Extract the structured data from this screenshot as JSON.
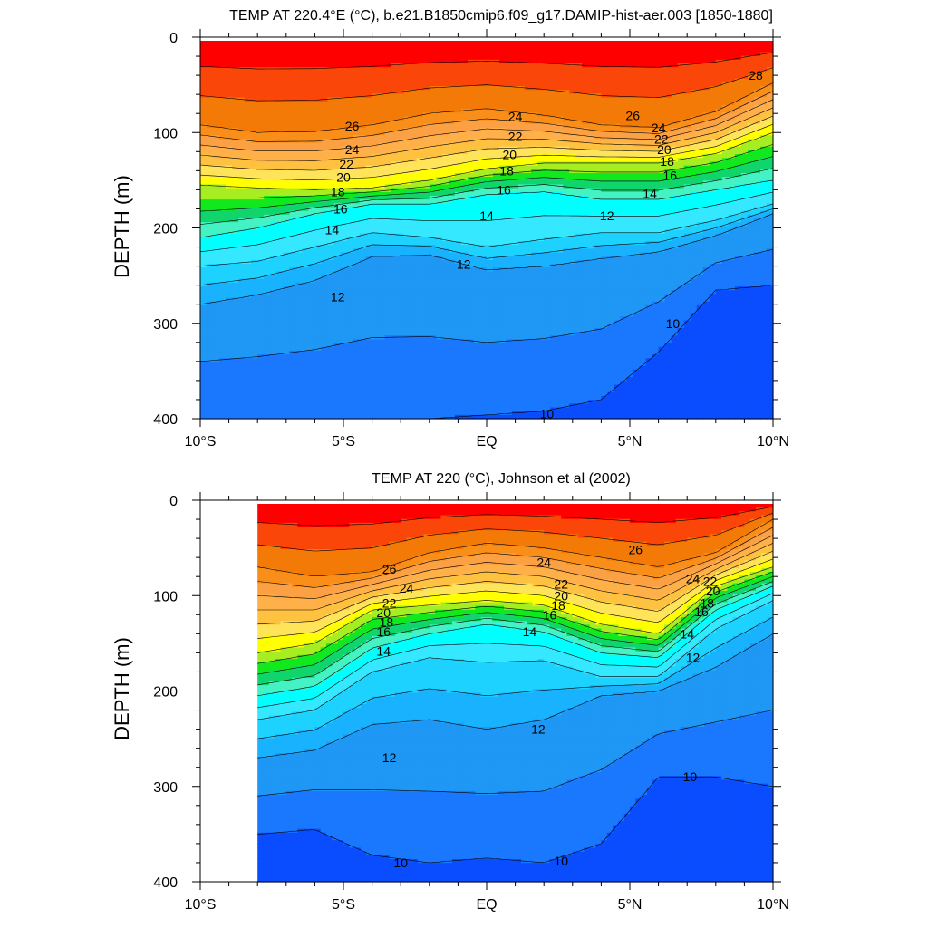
{
  "chart_data": [
    {
      "type": "contour",
      "title": "TEMP AT 220.4°E (°C), b.e21.B1850cmip6.f09_g17.DAMIP-hist-aer.003 [1850-1880]",
      "ylabel": "DEPTH (m)",
      "xlabel": "",
      "x_ticks": [
        "10°S",
        "5°S",
        "EQ",
        "5°N",
        "10°N"
      ],
      "y_ticks": [
        "0",
        "100",
        "200",
        "300",
        "400"
      ],
      "xlim": [
        -10,
        10
      ],
      "ylim": [
        400,
        0
      ],
      "data_xlim": [
        -10,
        10
      ],
      "contour_levels": [
        10,
        11,
        12,
        13,
        14,
        15,
        16,
        17,
        18,
        19,
        20,
        21,
        22,
        23,
        24,
        25,
        26,
        27,
        28
      ],
      "isotherm_depths": {
        "x": [
          -10,
          -8,
          -6,
          -4,
          -2,
          0,
          2,
          4,
          6,
          8,
          10
        ],
        "t26": [
          92,
          100,
          99,
          92,
          80,
          75,
          82,
          92,
          95,
          78,
          48
        ],
        "t20": [
          155,
          158,
          160,
          158,
          150,
          138,
          132,
          132,
          132,
          122,
          100
        ],
        "t16": [
          210,
          200,
          185,
          175,
          175,
          165,
          162,
          170,
          170,
          160,
          150
        ],
        "t14": [
          240,
          235,
          220,
          205,
          210,
          220,
          212,
          205,
          205,
          192,
          175
        ],
        "t12": [
          280,
          270,
          255,
          230,
          228,
          244,
          240,
          232,
          225,
          208,
          185
        ],
        "t10": [
          400,
          400,
          400,
          400,
          400,
          396,
          392,
          380,
          330,
          265,
          260
        ]
      },
      "contour_labels": [
        {
          "x": -4.7,
          "y": 93,
          "text": "26"
        },
        {
          "x": 1,
          "y": 83,
          "text": "24"
        },
        {
          "x": 1,
          "y": 104,
          "text": "22"
        },
        {
          "x": 0.8,
          "y": 123,
          "text": "20"
        },
        {
          "x": 0.7,
          "y": 140,
          "text": "18"
        },
        {
          "x": 0.6,
          "y": 160,
          "text": "16"
        },
        {
          "x": 0,
          "y": 187,
          "text": "14"
        },
        {
          "x": 4.2,
          "y": 187,
          "text": "12"
        },
        {
          "x": -4.7,
          "y": 118,
          "text": "24"
        },
        {
          "x": -4.9,
          "y": 133,
          "text": "22"
        },
        {
          "x": -5.0,
          "y": 147,
          "text": "20"
        },
        {
          "x": -5.2,
          "y": 162,
          "text": "18"
        },
        {
          "x": -5.1,
          "y": 180,
          "text": "16"
        },
        {
          "x": -5.4,
          "y": 202,
          "text": "14"
        },
        {
          "x": -5.2,
          "y": 272,
          "text": "12"
        },
        {
          "x": -0.8,
          "y": 238,
          "text": "12"
        },
        {
          "x": 6.0,
          "y": 95,
          "text": "24"
        },
        {
          "x": 6.1,
          "y": 107,
          "text": "22"
        },
        {
          "x": 6.2,
          "y": 118,
          "text": "20"
        },
        {
          "x": 6.3,
          "y": 130,
          "text": "18"
        },
        {
          "x": 6.4,
          "y": 145,
          "text": "16"
        },
        {
          "x": 5.7,
          "y": 164,
          "text": "14"
        },
        {
          "x": 9.4,
          "y": 40,
          "text": "28"
        },
        {
          "x": 5.1,
          "y": 82,
          "text": "26"
        },
        {
          "x": 6.5,
          "y": 300,
          "text": "10"
        },
        {
          "x": 2.1,
          "y": 395,
          "text": "10"
        }
      ]
    },
    {
      "type": "contour",
      "title": "TEMP AT 220 (°C), Johnson et al (2002)",
      "ylabel": "DEPTH (m)",
      "xlabel": "",
      "x_ticks": [
        "10°S",
        "5°S",
        "EQ",
        "5°N",
        "10°N"
      ],
      "y_ticks": [
        "0",
        "100",
        "200",
        "300",
        "400"
      ],
      "xlim": [
        -10,
        10
      ],
      "ylim": [
        400,
        0
      ],
      "data_xlim": [
        -8,
        10
      ],
      "contour_levels": [
        10,
        11,
        12,
        13,
        14,
        15,
        16,
        17,
        18,
        19,
        20,
        21,
        22,
        23,
        24,
        25,
        26,
        27,
        28
      ],
      "isotherm_depths": {
        "x": [
          -8,
          -6,
          -4,
          -2,
          0,
          2,
          4,
          6,
          8,
          10
        ],
        "t26": [
          70,
          80,
          75,
          55,
          45,
          50,
          60,
          70,
          55,
          20
        ],
        "t20": [
          160,
          150,
          115,
          110,
          105,
          110,
          130,
          140,
          90,
          70
        ],
        "t16": [
          205,
          195,
          155,
          140,
          130,
          138,
          160,
          165,
          115,
          90
        ],
        "t14": [
          230,
          220,
          180,
          165,
          170,
          168,
          185,
          185,
          135,
          105
        ],
        "t12": [
          270,
          262,
          235,
          230,
          240,
          230,
          205,
          200,
          175,
          140
        ],
        "t10": [
          350,
          345,
          372,
          380,
          375,
          380,
          360,
          290,
          290,
          300
        ]
      },
      "contour_labels": [
        {
          "x": -3.4,
          "y": 72,
          "text": "26"
        },
        {
          "x": 2.0,
          "y": 65,
          "text": "24"
        },
        {
          "x": 5.2,
          "y": 52,
          "text": "26"
        },
        {
          "x": -2.8,
          "y": 92,
          "text": "24"
        },
        {
          "x": 2.6,
          "y": 88,
          "text": "22"
        },
        {
          "x": 2.6,
          "y": 100,
          "text": "20"
        },
        {
          "x": 2.5,
          "y": 110,
          "text": "18"
        },
        {
          "x": 2.2,
          "y": 120,
          "text": "16"
        },
        {
          "x": 1.5,
          "y": 138,
          "text": "14"
        },
        {
          "x": -3.4,
          "y": 108,
          "text": "22"
        },
        {
          "x": -3.6,
          "y": 118,
          "text": "20"
        },
        {
          "x": -3.5,
          "y": 128,
          "text": "18"
        },
        {
          "x": -3.6,
          "y": 138,
          "text": "16"
        },
        {
          "x": -3.6,
          "y": 158,
          "text": "14"
        },
        {
          "x": 7.2,
          "y": 82,
          "text": "24"
        },
        {
          "x": 7.8,
          "y": 85,
          "text": "22"
        },
        {
          "x": 7.9,
          "y": 95,
          "text": "20"
        },
        {
          "x": 7.7,
          "y": 108,
          "text": "18"
        },
        {
          "x": 7.5,
          "y": 117,
          "text": "16"
        },
        {
          "x": 7.0,
          "y": 140,
          "text": "14"
        },
        {
          "x": 7.2,
          "y": 165,
          "text": "12"
        },
        {
          "x": 1.8,
          "y": 240,
          "text": "12"
        },
        {
          "x": -3.4,
          "y": 270,
          "text": "12"
        },
        {
          "x": 7.1,
          "y": 290,
          "text": "10"
        },
        {
          "x": -3.0,
          "y": 380,
          "text": "10"
        },
        {
          "x": 2.6,
          "y": 378,
          "text": "10"
        }
      ]
    }
  ],
  "palette": {
    "levels": [
      "<10",
      "10-11",
      "11-12",
      "12-13",
      "13-14",
      "14-15",
      "15-16",
      "16-17",
      "17-18",
      "18-19",
      "19-20",
      "20-21",
      "21-22",
      "22-23",
      "23-24",
      "24-25",
      "25-26",
      "26-27",
      "27-28",
      ">28"
    ],
    "colors": [
      "#0a4dff",
      "#1a78ff",
      "#1f97f5",
      "#18b2ff",
      "#1ed2ff",
      "#35e8ff",
      "#00ffff",
      "#44f2c4",
      "#10d46c",
      "#12e81e",
      "#a6ee22",
      "#ffff00",
      "#ffe45a",
      "#ffc240",
      "#ffb048",
      "#fca044",
      "#f98e18",
      "#f47a08",
      "#fa4608",
      "#ff0000"
    ]
  }
}
